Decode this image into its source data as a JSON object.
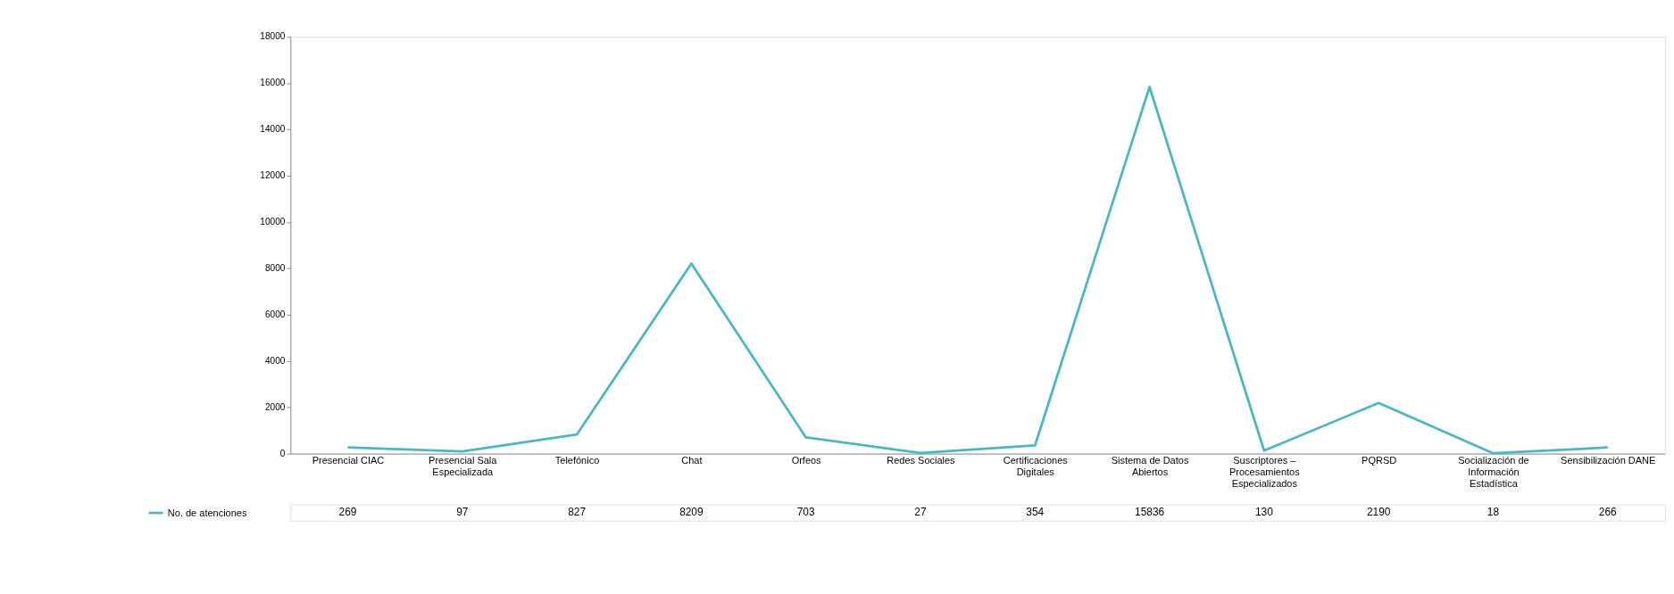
{
  "chart_data": {
    "type": "line",
    "categories": [
      "Presencial CIAC",
      "Presencial Sala Especializada",
      "Telefónico",
      "Chat",
      "Orfeos",
      "Redes Sociales",
      "Certificaciones Digitales",
      "Sistema de Datos Abiertos",
      "Suscriptores – Procesamientos Especializados",
      "PQRSD",
      "Socialización de Información Estadística",
      "Sensibilización DANE"
    ],
    "series": [
      {
        "name": "No. de atenciones",
        "color": "#4bb8bf",
        "values": [
          269,
          97,
          827,
          8209,
          703,
          27,
          354,
          15836,
          130,
          2190,
          18,
          266
        ]
      }
    ],
    "ylim": [
      0,
      18000
    ],
    "yticks": [
      0,
      2000,
      4000,
      6000,
      8000,
      10000,
      12000,
      14000,
      16000,
      18000
    ],
    "data_labels": true,
    "legend": "bottom left",
    "grid": false,
    "marker": "none",
    "line_style": "solid"
  }
}
